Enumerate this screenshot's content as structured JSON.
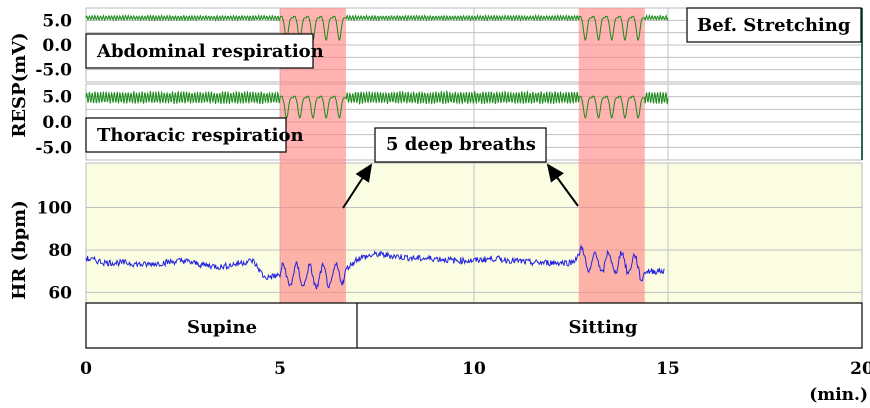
{
  "chart_data": {
    "type": "line",
    "xlabel": "(min.)",
    "xlim": [
      0,
      20
    ],
    "xticks": [
      "0",
      "5",
      "10",
      "15",
      "20"
    ],
    "resp_ylabel": "RESP(mV)",
    "hr_ylabel": "HR (bpm)",
    "resp_ticks": [
      "5.0",
      "0.0",
      "-5.0"
    ],
    "resp_ylim": [
      -7.5,
      7.5
    ],
    "hr_ticks": [
      "100",
      "80",
      "60"
    ],
    "hr_ylim": [
      55,
      121
    ],
    "condition_label": "Bef. Stretching",
    "annotation": "5 deep breaths",
    "deep_breath_periods": [
      [
        5.0,
        6.7
      ],
      [
        12.7,
        14.4
      ]
    ],
    "postures": [
      {
        "label": "Supine",
        "start": 0,
        "end": 7.1
      },
      {
        "label": "Sitting",
        "start": 7.1,
        "end": 20
      }
    ],
    "series": [
      {
        "name": "Abdominal respiration",
        "color": "#1a8a1a",
        "baseline_mV": 5.5,
        "amplitude_mV": 0.5,
        "deep_dip_mV": 4.5,
        "end_min": 15
      },
      {
        "name": "Thoracic respiration",
        "color": "#1a8a1a",
        "baseline_mV": 4.8,
        "amplitude_mV": 1.3,
        "deep_dip_mV": 4.0,
        "end_min": 15
      },
      {
        "name": "HR",
        "color": "#2222dd",
        "x": [
          0,
          0.5,
          1,
          1.5,
          2,
          2.5,
          3,
          3.5,
          4,
          4.3,
          4.6,
          5,
          5.5,
          6,
          6.5,
          6.7,
          7,
          7.5,
          8,
          8.5,
          9,
          9.5,
          10,
          10.5,
          11,
          11.5,
          12,
          12.5,
          12.7,
          13,
          13.5,
          14,
          14.4,
          14.9
        ],
        "y": [
          76,
          74,
          74,
          73,
          74,
          75,
          73,
          72,
          74,
          75,
          67,
          68,
          68,
          67,
          68,
          71,
          76,
          78,
          77,
          76,
          76,
          75,
          75,
          76,
          75,
          74,
          74,
          74,
          77,
          74,
          74,
          74,
          70,
          70
        ]
      }
    ],
    "colors": {
      "shade": "#ff8080",
      "hr_bg": "#fbfde3",
      "grid": "#c0c0c0"
    }
  }
}
